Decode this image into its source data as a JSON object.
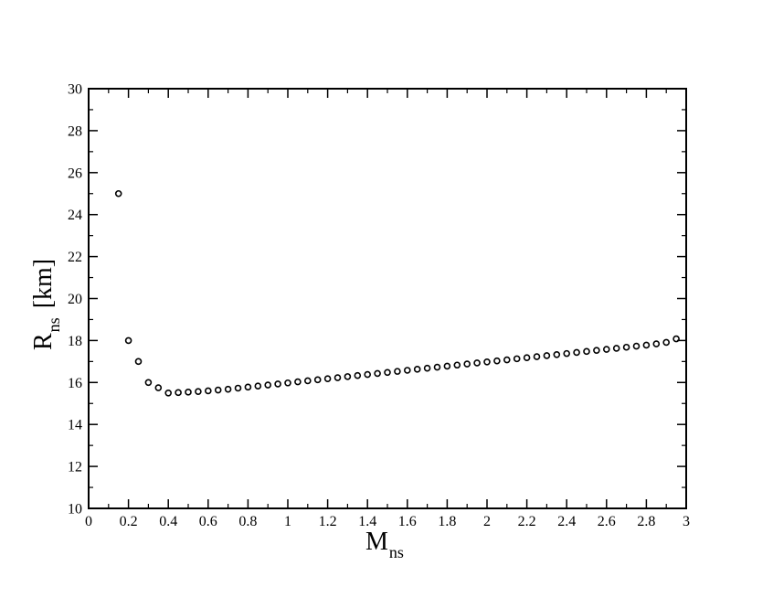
{
  "chart_data": {
    "type": "scatter",
    "xlabel": {
      "main": "M",
      "sub": "ns"
    },
    "ylabel": {
      "main": "R",
      "sub": "ns",
      "unit": "[km]"
    },
    "xlim": [
      0,
      3
    ],
    "ylim": [
      10,
      30
    ],
    "x_ticks": [
      "0",
      "0.2",
      "0.4",
      "0.6",
      "0.8",
      "1",
      "1.2",
      "1.4",
      "1.6",
      "1.8",
      "2",
      "2.2",
      "2.4",
      "2.6",
      "2.8",
      "3"
    ],
    "x_tick_values": [
      0,
      0.2,
      0.4,
      0.6,
      0.8,
      1,
      1.2,
      1.4,
      1.6,
      1.8,
      2,
      2.2,
      2.4,
      2.6,
      2.8,
      3
    ],
    "y_ticks": [
      "10",
      "12",
      "14",
      "16",
      "18",
      "20",
      "22",
      "24",
      "26",
      "28",
      "30"
    ],
    "y_tick_values": [
      10,
      12,
      14,
      16,
      18,
      20,
      22,
      24,
      26,
      28,
      30
    ],
    "grid": false,
    "marker": "open-circle",
    "series": [
      {
        "x": [
          0.15,
          0.2,
          0.25,
          0.3,
          0.35,
          0.4,
          0.45,
          0.5,
          0.55,
          0.6,
          0.65,
          0.7,
          0.75,
          0.8,
          0.85,
          0.9,
          0.95,
          1.0,
          1.05,
          1.1,
          1.15,
          1.2,
          1.25,
          1.3,
          1.35,
          1.4,
          1.45,
          1.5,
          1.55,
          1.6,
          1.65,
          1.7,
          1.75,
          1.8,
          1.85,
          1.9,
          1.95,
          2.0,
          2.05,
          2.1,
          2.15,
          2.2,
          2.25,
          2.3,
          2.35,
          2.4,
          2.45,
          2.5,
          2.55,
          2.6,
          2.65,
          2.7,
          2.75,
          2.8,
          2.85,
          2.9,
          2.95
        ],
        "y": [
          25.0,
          18.0,
          17.0,
          16.0,
          15.75,
          15.5,
          15.52,
          15.54,
          15.57,
          15.6,
          15.64,
          15.68,
          15.73,
          15.78,
          15.83,
          15.88,
          15.93,
          15.98,
          16.03,
          16.08,
          16.13,
          16.18,
          16.23,
          16.28,
          16.33,
          16.38,
          16.43,
          16.48,
          16.53,
          16.58,
          16.63,
          16.68,
          16.73,
          16.78,
          16.83,
          16.88,
          16.93,
          16.98,
          17.03,
          17.08,
          17.13,
          17.18,
          17.23,
          17.28,
          17.33,
          17.38,
          17.43,
          17.48,
          17.53,
          17.58,
          17.63,
          17.68,
          17.73,
          17.78,
          17.84,
          17.91,
          18.08
        ]
      }
    ]
  }
}
